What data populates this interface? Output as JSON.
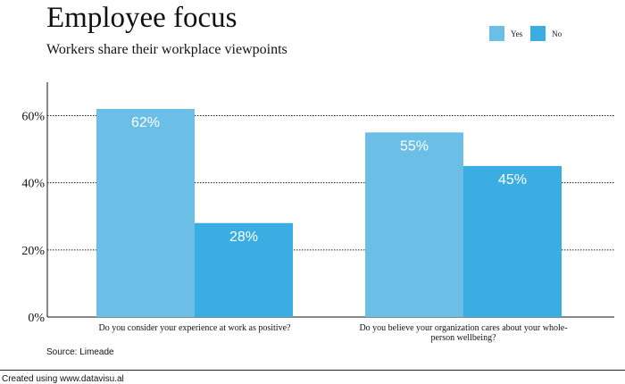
{
  "chart_data": {
    "type": "bar",
    "title": "Employee focus",
    "subtitle": "Workers share their workplace viewpoints",
    "categories": [
      "Do you consider your experience at work as positive?",
      "Do you believe your organization cares about your whole-person wellbeing?"
    ],
    "category_lines": [
      [
        "Do you consider your experience at work as positive?"
      ],
      [
        "Do you believe your organization cares about your whole-",
        "person wellbeing?"
      ]
    ],
    "series": [
      {
        "name": "Yes",
        "values": [
          62,
          55
        ],
        "color": "#6bbfe6"
      },
      {
        "name": "No",
        "values": [
          28,
          45
        ],
        "color": "#3aaee2"
      }
    ],
    "value_labels": [
      [
        "62%",
        "55%"
      ],
      [
        "28%",
        "45%"
      ]
    ],
    "yticks": [
      0,
      20,
      40,
      60
    ],
    "ytick_labels": [
      "0%",
      "20%",
      "40%",
      "60%"
    ],
    "ylim": [
      0,
      70
    ],
    "grid": true,
    "legend": "top-right",
    "xlabel": "",
    "ylabel": ""
  },
  "source": "Source: Limeade",
  "footer": "Created using www.datavisu.al"
}
